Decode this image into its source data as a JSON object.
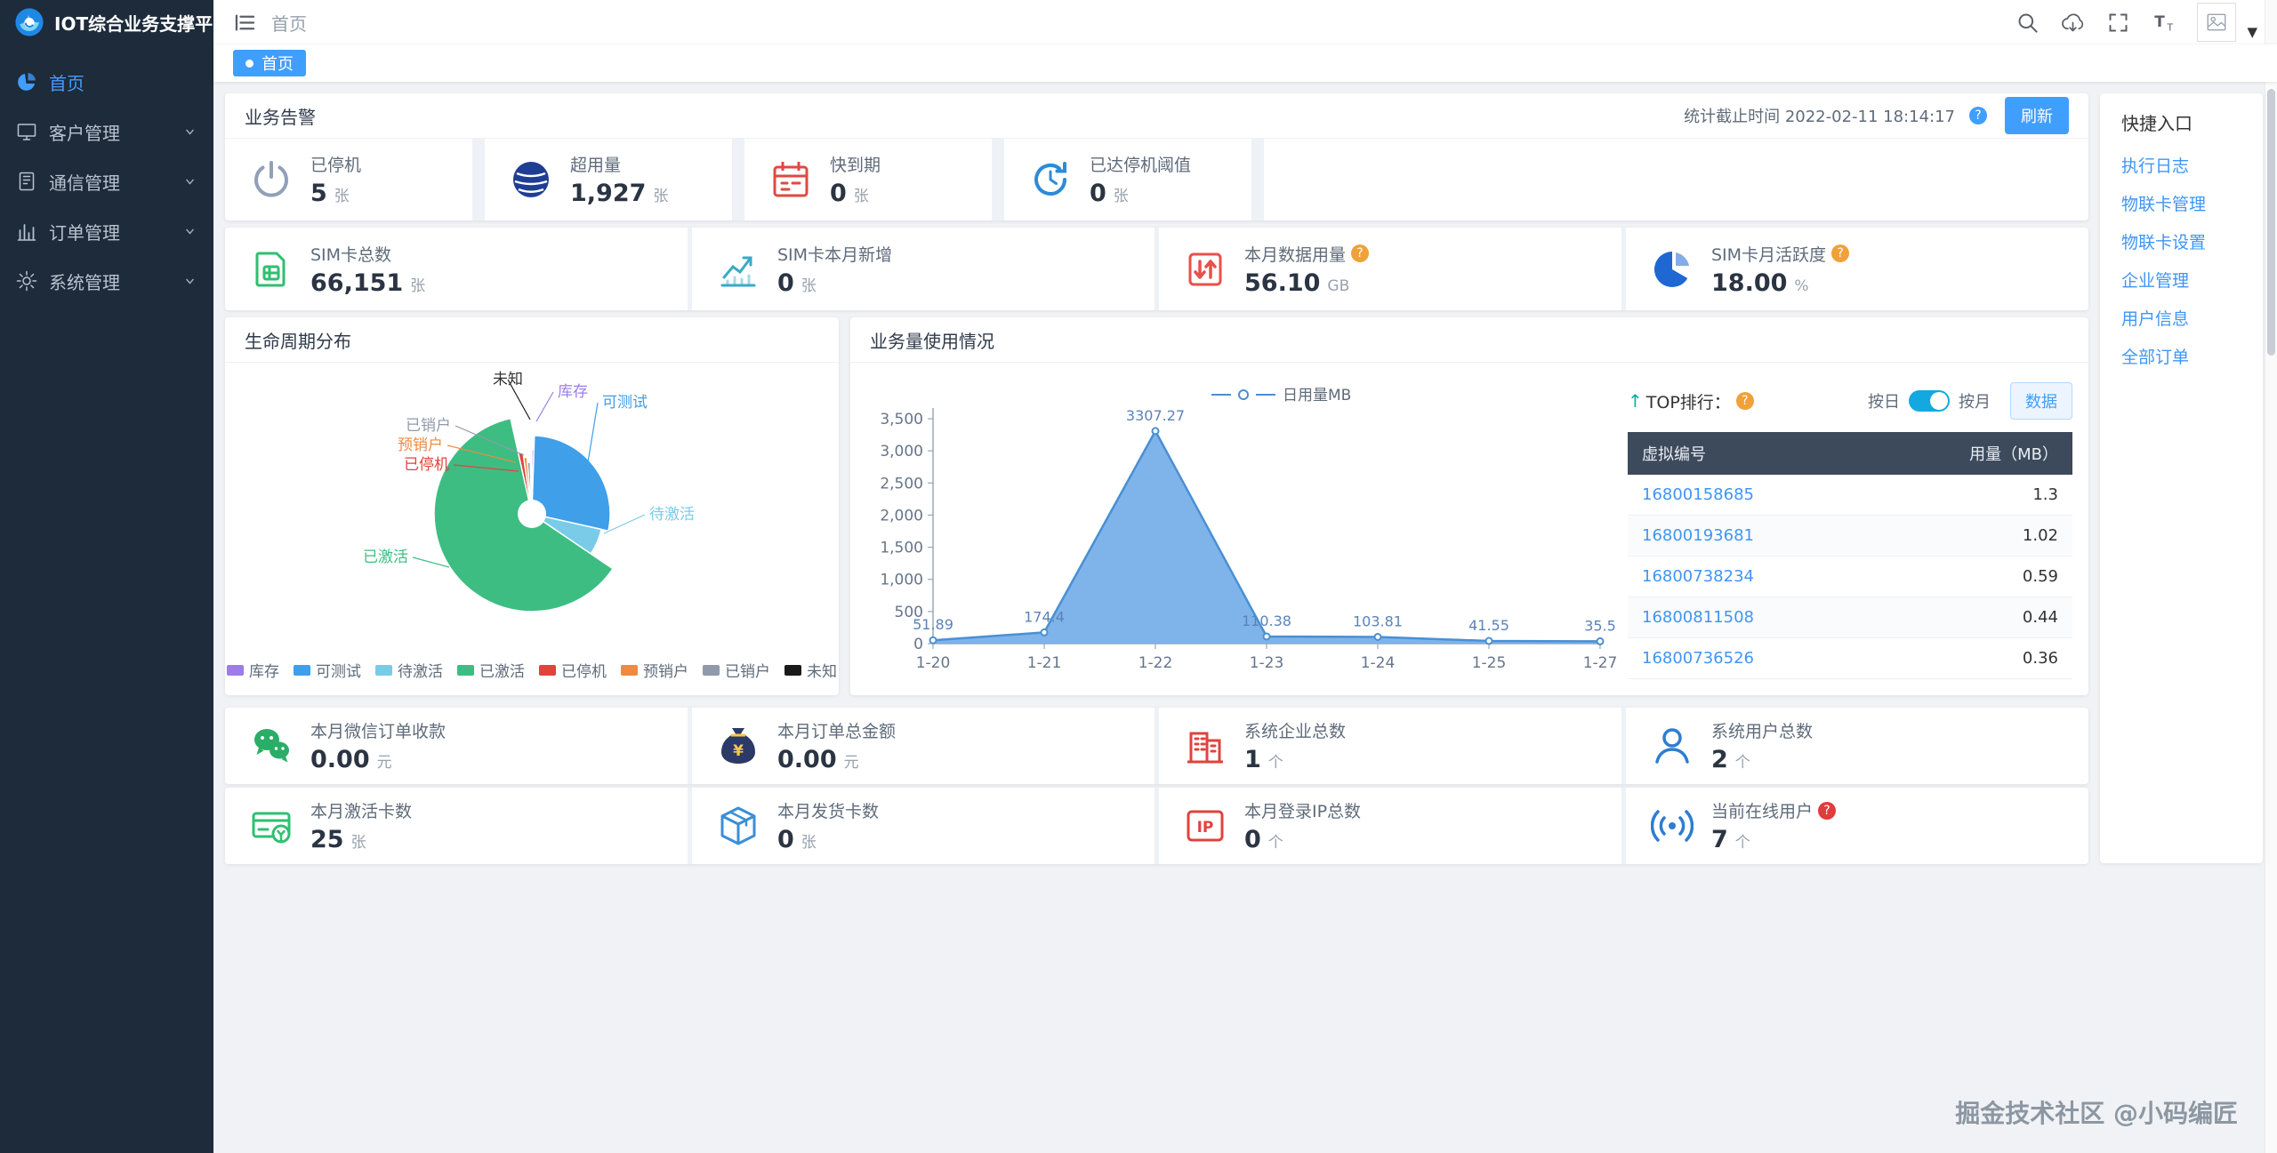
{
  "app": {
    "title": "IOT综合业务支撑平台",
    "watermark": "掘金技术社区 @小码编匠"
  },
  "sidebar": {
    "items": [
      {
        "id": "home",
        "label": "首页",
        "icon": "home-icon",
        "active": true,
        "expandable": false
      },
      {
        "id": "customer",
        "label": "客户管理",
        "icon": "customer-icon",
        "active": false,
        "expandable": true
      },
      {
        "id": "comm",
        "label": "通信管理",
        "icon": "comm-icon",
        "active": false,
        "expandable": true
      },
      {
        "id": "order",
        "label": "订单管理",
        "icon": "order-icon",
        "active": false,
        "expandable": true
      },
      {
        "id": "system",
        "label": "系统管理",
        "icon": "system-icon",
        "active": false,
        "expandable": true
      }
    ]
  },
  "navbar": {
    "breadcrumb": "首页"
  },
  "tabbar": {
    "tabs": [
      {
        "label": "首页",
        "active": true
      }
    ]
  },
  "alarm": {
    "title": "业务告警",
    "stat_time": "统计截止时间 2022-02-11 18:14:17",
    "stat_time_help_color": "#409eff",
    "refresh": "刷新",
    "stats": [
      {
        "icon": "power-icon",
        "color": "#90a0b7",
        "label": "已停机",
        "value": "5",
        "unit": "张"
      },
      {
        "icon": "overuse-icon",
        "color": "#1f3e93",
        "label": "超用量",
        "value": "1,927",
        "unit": "张"
      },
      {
        "icon": "calendar-icon",
        "color": "#e04940",
        "label": "快到期",
        "value": "0",
        "unit": "张"
      },
      {
        "icon": "threshold-icon",
        "color": "#2d8bd8",
        "label": "已达停机阈值",
        "value": "0",
        "unit": "张"
      }
    ]
  },
  "sim_stats": [
    {
      "icon": "sim-icon",
      "color": "#2fbf71",
      "label": "SIM卡总数",
      "value": "66,151",
      "unit": "张"
    },
    {
      "icon": "trend-icon",
      "color": "#3aa9c8",
      "label": "SIM卡本月新增",
      "value": "0",
      "unit": "张"
    },
    {
      "icon": "usage-icon",
      "color": "#e8504a",
      "label": "本月数据用量",
      "value": "56.10",
      "unit": "GB",
      "help": "#f0a13a"
    },
    {
      "icon": "activity-icon",
      "color": "#1f67d2",
      "label": "SIM卡月活跃度",
      "value": "18.00",
      "unit": "%",
      "help": "#f0a13a"
    }
  ],
  "bottom_stats": {
    "row1": [
      {
        "icon": "wechat-icon",
        "color": "#2aae67",
        "label": "本月微信订单收款",
        "value": "0.00",
        "unit": "元"
      },
      {
        "icon": "money-icon",
        "color": "#2b3a67",
        "label": "本月订单总金额",
        "value": "0.00",
        "unit": "元"
      },
      {
        "icon": "building-icon",
        "color": "#e0433d",
        "label": "系统企业总数",
        "value": "1",
        "unit": "个"
      },
      {
        "icon": "user-icon",
        "color": "#2d7dd2",
        "label": "系统用户总数",
        "value": "2",
        "unit": "个"
      }
    ],
    "row2": [
      {
        "icon": "card-icon",
        "color": "#2fbf71",
        "label": "本月激活卡数",
        "value": "25",
        "unit": "张"
      },
      {
        "icon": "package-icon",
        "color": "#3a8fd8",
        "label": "本月发货卡数",
        "value": "0",
        "unit": "张"
      },
      {
        "icon": "ip-icon",
        "color": "#e0433d",
        "label": "本月登录IP总数",
        "value": "0",
        "unit": "个"
      },
      {
        "icon": "online-icon",
        "color": "#2d7dd2",
        "label": "当前在线用户",
        "value": "7",
        "unit": "个",
        "help": "#e03c3c"
      }
    ]
  },
  "top_rank": {
    "title": "TOP排行：",
    "help_color": "#f0a13a",
    "toggle_left": "按日",
    "toggle_right": "按月",
    "data_button": "数据",
    "headers": [
      "虚拟编号",
      "用量（MB）"
    ],
    "rows": [
      {
        "id": "16800158685",
        "value": "1.3"
      },
      {
        "id": "16800193681",
        "value": "1.02"
      },
      {
        "id": "16800738234",
        "value": "0.59"
      },
      {
        "id": "16800811508",
        "value": "0.44"
      },
      {
        "id": "16800736526",
        "value": "0.36"
      }
    ]
  },
  "quick_entry": {
    "title": "快捷入口",
    "links": [
      "执行日志",
      "物联卡管理",
      "物联卡设置",
      "企业管理",
      "用户信息",
      "全部订单"
    ]
  },
  "chart_data": [
    {
      "type": "pie",
      "style": "nightingale-donut",
      "title": "生命周期分布",
      "legend_position": "bottom",
      "slices": [
        {
          "label": "库存",
          "pct": 0.5,
          "color": "#9d7ce8",
          "radius": 72
        },
        {
          "label": "可测试",
          "pct": 28,
          "color": "#3f9fe8",
          "radius": 88
        },
        {
          "label": "待激活",
          "pct": 6,
          "color": "#79cbe8",
          "radius": 80
        },
        {
          "label": "已激活",
          "pct": 62,
          "color": "#3dbd82",
          "radius": 110
        },
        {
          "label": "已停机",
          "pct": 1.2,
          "color": "#e0433d",
          "radius": 70
        },
        {
          "label": "预销户",
          "pct": 0.9,
          "color": "#ef8a43",
          "radius": 64
        },
        {
          "label": "已销户",
          "pct": 0.9,
          "color": "#8f9aab",
          "radius": 58
        },
        {
          "label": "未知",
          "pct": 0.5,
          "color": "#1a1a1a",
          "radius": 52
        }
      ]
    },
    {
      "type": "area",
      "title": "业务量使用情况",
      "series_name": "日用量MB",
      "x": [
        "1-20",
        "1-21",
        "1-22",
        "1-23",
        "1-24",
        "1-25",
        "1-27"
      ],
      "values": [
        51.89,
        174.4,
        3307.27,
        110.38,
        103.81,
        41.55,
        35.5
      ],
      "yticks": [
        0,
        500,
        1000,
        1500,
        2000,
        2500,
        3000,
        3500
      ],
      "ylim": [
        0,
        3500
      ],
      "grid": false,
      "legend_position": "top",
      "line_color": "#4a8fd4",
      "fill_color": "#74aee8"
    }
  ]
}
